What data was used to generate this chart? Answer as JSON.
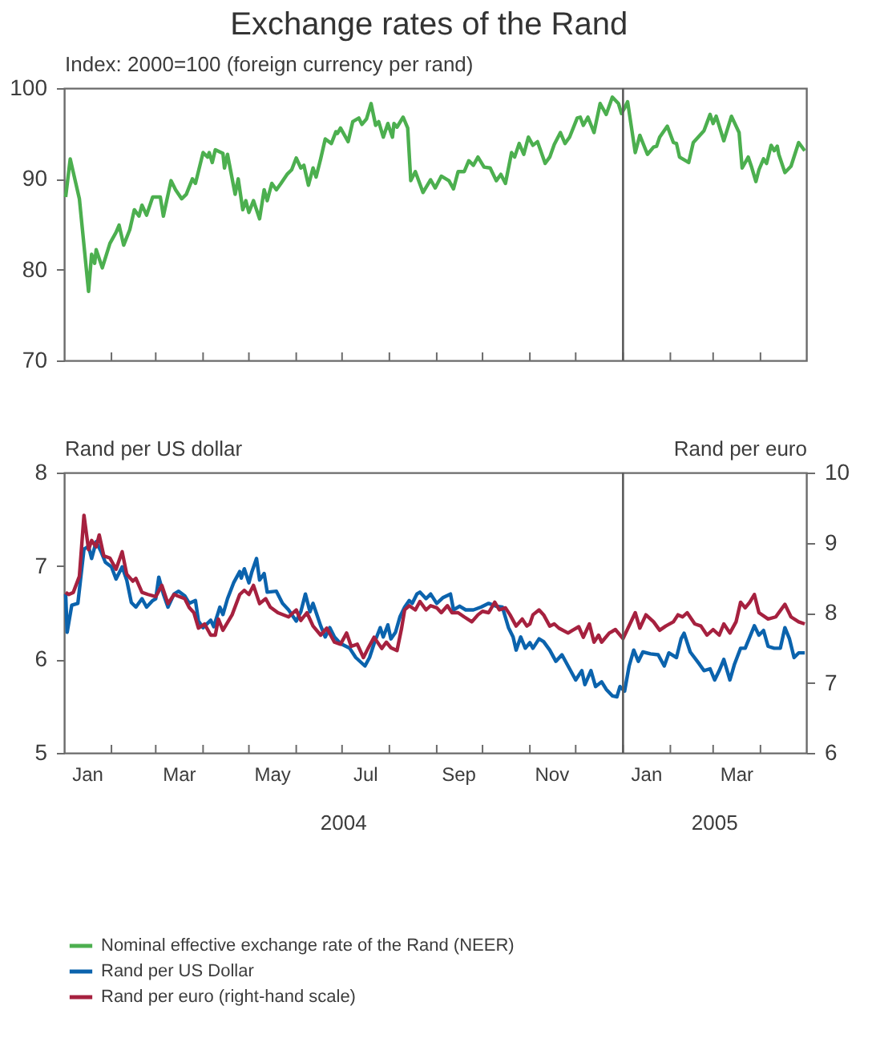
{
  "chart_data": [
    {
      "type": "line",
      "title": "Exchange rates of the Rand",
      "ylabel": "Index: 2000=100 (foreign currency per rand)",
      "xlim": [
        "2004-01-01",
        "2005-05-01"
      ],
      "ylim": [
        70,
        100
      ],
      "yticks": [
        70,
        80,
        90,
        100
      ],
      "xticks": [
        {
          "value": "2004-02-01",
          "label": null
        },
        {
          "value": "2004-03-01",
          "label": null
        },
        {
          "value": "2004-04-01",
          "label": null
        },
        {
          "value": "2004-05-01",
          "label": null
        },
        {
          "value": "2004-06-01",
          "label": null
        },
        {
          "value": "2004-07-01",
          "label": null
        },
        {
          "value": "2004-08-01",
          "label": null
        },
        {
          "value": "2004-09-01",
          "label": null
        },
        {
          "value": "2004-10-01",
          "label": null
        },
        {
          "value": "2004-11-01",
          "label": null
        },
        {
          "value": "2004-12-01",
          "label": null
        },
        {
          "value": "2005-01-01",
          "label": null
        },
        {
          "value": "2005-02-01",
          "label": null
        },
        {
          "value": "2005-03-01",
          "label": null
        },
        {
          "value": "2005-04-01",
          "label": null
        }
      ],
      "tick_labels": "y",
      "grid": false,
      "legend": "bottom",
      "line_style": "solid",
      "ref_lines": [
        {
          "axis": "x",
          "value": "2005-01-01",
          "color": "#5a5a5a"
        }
      ],
      "series": [
        {
          "name": "Nominal effective exchange rate of the Rand (NEER)",
          "color": "#4caf4f",
          "x": [
            "2004-01-02",
            "2004-01-05",
            "2004-01-11",
            "2004-01-17",
            "2004-01-19",
            "2004-01-21",
            "2004-01-22",
            "2004-01-26",
            "2004-01-31",
            "2004-02-04",
            "2004-02-06",
            "2004-02-09",
            "2004-02-13",
            "2004-02-16",
            "2004-02-19",
            "2004-02-21",
            "2004-02-24",
            "2004-02-28",
            "2004-03-04",
            "2004-03-06",
            "2004-03-11",
            "2004-03-14",
            "2004-03-18",
            "2004-03-21",
            "2004-03-25",
            "2004-03-27",
            "2004-04-01",
            "2004-04-04",
            "2004-04-05",
            "2004-04-07",
            "2004-04-09",
            "2004-04-14",
            "2004-04-15",
            "2004-04-17",
            "2004-04-22",
            "2004-04-24",
            "2004-04-27",
            "2004-04-29",
            "2004-05-01",
            "2004-05-04",
            "2004-05-08",
            "2004-05-11",
            "2004-05-13",
            "2004-05-16",
            "2004-05-19",
            "2004-05-22",
            "2004-05-26",
            "2004-05-29",
            "2004-06-01",
            "2004-06-04",
            "2004-06-06",
            "2004-06-09",
            "2004-06-12",
            "2004-06-14",
            "2004-06-17",
            "2004-06-20",
            "2004-06-24",
            "2004-06-27",
            "2004-06-28",
            "2004-06-30",
            "2004-07-05",
            "2004-07-08",
            "2004-07-12",
            "2004-07-14",
            "2004-07-17",
            "2004-07-20",
            "2004-07-23",
            "2004-07-25",
            "2004-07-28",
            "2004-07-31",
            "2004-08-03",
            "2004-08-04",
            "2004-08-06",
            "2004-08-10",
            "2004-08-13",
            "2004-08-15",
            "2004-08-18",
            "2004-08-23",
            "2004-08-28",
            "2004-08-31",
            "2004-09-04",
            "2004-09-09",
            "2004-09-12",
            "2004-09-15",
            "2004-09-19",
            "2004-09-22",
            "2004-09-25",
            "2004-09-28",
            "2004-10-02",
            "2004-10-06",
            "2004-10-10",
            "2004-10-13",
            "2004-10-16",
            "2004-10-20",
            "2004-10-22",
            "2004-10-25",
            "2004-10-28",
            "2004-10-31",
            "2004-11-03",
            "2004-11-06",
            "2004-11-11",
            "2004-11-14",
            "2004-11-17",
            "2004-11-21",
            "2004-11-24",
            "2004-11-27",
            "2004-12-02",
            "2004-12-04",
            "2004-12-06",
            "2004-12-09",
            "2004-12-13",
            "2004-12-17",
            "2004-12-21",
            "2004-12-25",
            "2004-12-29",
            "2004-12-31",
            "2005-01-02",
            "2005-01-04",
            "2005-01-09",
            "2005-01-12",
            "2005-01-17",
            "2005-01-21",
            "2005-01-23",
            "2005-01-25",
            "2005-01-30",
            "2005-02-03",
            "2005-02-05",
            "2005-02-07",
            "2005-02-13",
            "2005-02-16",
            "2005-02-23",
            "2005-02-27",
            "2005-03-01",
            "2005-03-03",
            "2005-03-08",
            "2005-03-13",
            "2005-03-18",
            "2005-03-20",
            "2005-03-24",
            "2005-03-26",
            "2005-03-29",
            "2005-03-31",
            "2005-04-03",
            "2005-04-05",
            "2005-04-08",
            "2005-04-10",
            "2005-04-12",
            "2005-04-13",
            "2005-04-17",
            "2005-04-21",
            "2005-04-26",
            "2005-04-30"
          ],
          "values": [
            88.0,
            92.2,
            87.8,
            77.6,
            81.7,
            80.7,
            82.2,
            80.2,
            82.9,
            84.1,
            84.9,
            82.7,
            84.4,
            86.6,
            85.9,
            87.1,
            86.0,
            88.0,
            88.0,
            85.9,
            89.8,
            88.8,
            87.8,
            88.3,
            90.0,
            89.5,
            92.9,
            92.4,
            92.9,
            91.8,
            93.2,
            92.8,
            91.2,
            92.7,
            88.3,
            90.0,
            86.6,
            87.6,
            86.3,
            87.6,
            85.6,
            88.8,
            87.6,
            89.5,
            88.8,
            89.5,
            90.5,
            91.0,
            92.3,
            91.2,
            91.5,
            89.3,
            91.2,
            90.2,
            92.2,
            94.4,
            93.9,
            95.2,
            95.0,
            95.6,
            94.1,
            96.3,
            96.7,
            96.0,
            96.6,
            98.3,
            95.9,
            96.3,
            94.6,
            96.1,
            94.6,
            96.1,
            95.7,
            96.8,
            95.6,
            89.8,
            90.8,
            88.5,
            89.9,
            89.0,
            90.3,
            89.8,
            88.9,
            90.8,
            90.8,
            92.0,
            91.5,
            92.4,
            91.3,
            91.2,
            89.8,
            90.5,
            89.5,
            92.9,
            92.4,
            93.9,
            92.7,
            94.6,
            93.7,
            94.1,
            91.7,
            92.4,
            93.8,
            95.1,
            93.9,
            94.6,
            96.7,
            96.8,
            95.9,
            96.8,
            95.1,
            98.3,
            97.1,
            99.0,
            98.3,
            97.2,
            97.8,
            98.5,
            92.9,
            94.8,
            92.7,
            93.5,
            93.6,
            94.6,
            95.8,
            94.0,
            93.9,
            92.4,
            91.8,
            94.0,
            95.3,
            97.1,
            96.1,
            96.9,
            94.2,
            96.9,
            95.1,
            91.2,
            92.4,
            91.4,
            89.7,
            91.0,
            92.2,
            91.7,
            93.7,
            93.1,
            93.6,
            92.7,
            90.7,
            91.4,
            94.0,
            93.1
          ]
        }
      ]
    },
    {
      "type": "line",
      "ylabel": "Rand per US dollar",
      "y2label": "Rand per euro",
      "xlim": [
        "2004-01-01",
        "2005-05-01"
      ],
      "ylim": [
        5,
        8
      ],
      "yticks": [
        5,
        6,
        7,
        8
      ],
      "y2lim": [
        6,
        10
      ],
      "y2ticks": [
        6,
        7,
        8,
        9,
        10
      ],
      "xticks": [
        {
          "value": "2004-01-16",
          "label": "Jan"
        },
        {
          "value": "2004-02-01",
          "label": null
        },
        {
          "value": "2004-03-01",
          "label": null
        },
        {
          "value": "2004-03-16",
          "label": "Mar"
        },
        {
          "value": "2004-04-01",
          "label": null
        },
        {
          "value": "2004-05-01",
          "label": null
        },
        {
          "value": "2004-05-16",
          "label": "May"
        },
        {
          "value": "2004-06-01",
          "label": null
        },
        {
          "value": "2004-07-01",
          "label": null
        },
        {
          "value": "2004-07-16",
          "label": "Jul"
        },
        {
          "value": "2004-08-01",
          "label": null
        },
        {
          "value": "2004-09-01",
          "label": null
        },
        {
          "value": "2004-09-15",
          "label": "Sep"
        },
        {
          "value": "2004-10-01",
          "label": null
        },
        {
          "value": "2004-11-01",
          "label": null
        },
        {
          "value": "2004-11-15",
          "label": "Nov"
        },
        {
          "value": "2004-12-01",
          "label": null
        },
        {
          "value": "2005-01-01",
          "label": null
        },
        {
          "value": "2005-01-16",
          "label": "Jan"
        },
        {
          "value": "2005-02-01",
          "label": null
        },
        {
          "value": "2005-03-01",
          "label": null
        },
        {
          "value": "2005-03-16",
          "label": "Mar"
        },
        {
          "value": "2005-04-01",
          "label": null
        }
      ],
      "grid": false,
      "legend": "bottom",
      "line_style": "solid",
      "ref_lines": [
        {
          "axis": "x",
          "value": "2005-01-01",
          "color": "#5a5a5a"
        }
      ],
      "annotations": [
        "2004",
        "2005"
      ],
      "series": [
        {
          "name": "Rand per US Dollar",
          "color": "#0b63ad",
          "axis": "y",
          "x": [
            "2004-01-02",
            "2004-01-03",
            "2004-01-06",
            "2004-01-10",
            "2004-01-14",
            "2004-01-17",
            "2004-01-19",
            "2004-01-22",
            "2004-01-25",
            "2004-01-28",
            "2004-02-01",
            "2004-02-04",
            "2004-02-08",
            "2004-02-11",
            "2004-02-14",
            "2004-02-17",
            "2004-02-21",
            "2004-02-24",
            "2004-02-28",
            "2004-03-01",
            "2004-03-03",
            "2004-03-06",
            "2004-03-09",
            "2004-03-13",
            "2004-03-16",
            "2004-03-20",
            "2004-03-23",
            "2004-03-27",
            "2004-03-29",
            "2004-04-01",
            "2004-04-06",
            "2004-04-08",
            "2004-04-12",
            "2004-04-14",
            "2004-04-17",
            "2004-04-21",
            "2004-04-25",
            "2004-04-26",
            "2004-04-28",
            "2004-05-01",
            "2004-05-03",
            "2004-05-06",
            "2004-05-08",
            "2004-05-11",
            "2004-05-13",
            "2004-05-19",
            "2004-05-23",
            "2004-05-27",
            "2004-06-01",
            "2004-06-04",
            "2004-06-07",
            "2004-06-10",
            "2004-06-12",
            "2004-06-17",
            "2004-06-20",
            "2004-06-23",
            "2004-06-26",
            "2004-06-30",
            "2004-07-06",
            "2004-07-10",
            "2004-07-16",
            "2004-07-19",
            "2004-07-22",
            "2004-07-26",
            "2004-07-28",
            "2004-07-31",
            "2004-08-02",
            "2004-08-05",
            "2004-08-08",
            "2004-08-11",
            "2004-08-14",
            "2004-08-16",
            "2004-08-19",
            "2004-08-21",
            "2004-08-25",
            "2004-08-28",
            "2004-09-01",
            "2004-09-05",
            "2004-09-10",
            "2004-09-12",
            "2004-09-16",
            "2004-09-20",
            "2004-09-25",
            "2004-09-30",
            "2004-10-05",
            "2004-10-10",
            "2004-10-14",
            "2004-10-18",
            "2004-10-21",
            "2004-10-23",
            "2004-10-26",
            "2004-10-29",
            "2004-11-01",
            "2004-11-03",
            "2004-11-07",
            "2004-11-10",
            "2004-11-14",
            "2004-11-18",
            "2004-11-22",
            "2004-11-26",
            "2004-12-01",
            "2004-12-05",
            "2004-12-07",
            "2004-12-11",
            "2004-12-14",
            "2004-12-18",
            "2004-12-21",
            "2004-12-25",
            "2004-12-28",
            "2004-12-30",
            "2005-01-02",
            "2005-01-05",
            "2005-01-08",
            "2005-01-11",
            "2005-01-14",
            "2005-01-19",
            "2005-01-24",
            "2005-01-28",
            "2005-01-31",
            "2005-02-05",
            "2005-02-08",
            "2005-02-10",
            "2005-02-14",
            "2005-02-20",
            "2005-02-23",
            "2005-02-27",
            "2005-03-02",
            "2005-03-05",
            "2005-03-08",
            "2005-03-12",
            "2005-03-15",
            "2005-03-19",
            "2005-03-22",
            "2005-03-25",
            "2005-03-28",
            "2005-03-31",
            "2005-04-03",
            "2005-04-06",
            "2005-04-10",
            "2005-04-14",
            "2005-04-17",
            "2005-04-20",
            "2005-04-23",
            "2005-04-26",
            "2005-04-30"
          ],
          "values": [
            6.7,
            6.29,
            6.58,
            6.6,
            7.18,
            7.21,
            7.08,
            7.26,
            7.16,
            7.04,
            6.99,
            6.86,
            6.99,
            6.85,
            6.61,
            6.56,
            6.65,
            6.56,
            6.63,
            6.65,
            6.88,
            6.7,
            6.56,
            6.7,
            6.73,
            6.68,
            6.6,
            6.63,
            6.41,
            6.34,
            6.42,
            6.35,
            6.56,
            6.48,
            6.65,
            6.82,
            6.94,
            6.87,
            6.97,
            6.82,
            6.94,
            7.08,
            6.85,
            6.92,
            6.72,
            6.73,
            6.6,
            6.53,
            6.41,
            6.51,
            6.7,
            6.51,
            6.6,
            6.36,
            6.24,
            6.34,
            6.24,
            6.17,
            6.12,
            6.02,
            5.93,
            6.02,
            6.17,
            6.34,
            6.24,
            6.37,
            6.22,
            6.29,
            6.46,
            6.56,
            6.63,
            6.6,
            6.7,
            6.72,
            6.65,
            6.7,
            6.6,
            6.66,
            6.7,
            6.53,
            6.57,
            6.53,
            6.53,
            6.56,
            6.6,
            6.57,
            6.56,
            6.34,
            6.24,
            6.1,
            6.24,
            6.12,
            6.18,
            6.12,
            6.22,
            6.19,
            6.1,
            5.98,
            6.05,
            5.93,
            5.78,
            5.88,
            5.73,
            5.88,
            5.71,
            5.76,
            5.68,
            5.61,
            5.6,
            5.71,
            5.66,
            5.93,
            6.1,
            5.98,
            6.08,
            6.06,
            6.05,
            5.93,
            6.07,
            6.02,
            6.22,
            6.28,
            6.08,
            5.95,
            5.88,
            5.9,
            5.78,
            5.88,
            6.0,
            5.78,
            5.95,
            6.12,
            6.12,
            6.24,
            6.36,
            6.26,
            6.31,
            6.14,
            6.12,
            6.12,
            6.34,
            6.22,
            6.02,
            6.07,
            6.07
          ]
        },
        {
          "name": "Rand per euro (right-hand scale)",
          "color": "#a6213f",
          "axis": "y2",
          "x": [
            "2004-01-02",
            "2004-01-04",
            "2004-01-07",
            "2004-01-11",
            "2004-01-14",
            "2004-01-17",
            "2004-01-19",
            "2004-01-22",
            "2004-01-24",
            "2004-01-27",
            "2004-01-31",
            "2004-02-04",
            "2004-02-08",
            "2004-02-11",
            "2004-02-15",
            "2004-02-17",
            "2004-02-21",
            "2004-02-25",
            "2004-03-01",
            "2004-03-05",
            "2004-03-09",
            "2004-03-13",
            "2004-03-20",
            "2004-03-23",
            "2004-03-26",
            "2004-03-29",
            "2004-04-02",
            "2004-04-06",
            "2004-04-09",
            "2004-04-11",
            "2004-04-14",
            "2004-04-20",
            "2004-04-25",
            "2004-04-28",
            "2004-05-01",
            "2004-05-04",
            "2004-05-08",
            "2004-05-12",
            "2004-05-15",
            "2004-05-20",
            "2004-05-27",
            "2004-06-01",
            "2004-06-04",
            "2004-06-08",
            "2004-06-12",
            "2004-06-17",
            "2004-06-21",
            "2004-06-26",
            "2004-06-30",
            "2004-07-04",
            "2004-07-07",
            "2004-07-11",
            "2004-07-15",
            "2004-07-18",
            "2004-07-22",
            "2004-07-27",
            "2004-07-30",
            "2004-08-02",
            "2004-08-06",
            "2004-08-09",
            "2004-08-11",
            "2004-08-14",
            "2004-08-18",
            "2004-08-21",
            "2004-08-25",
            "2004-08-28",
            "2004-09-01",
            "2004-09-04",
            "2004-09-08",
            "2004-09-11",
            "2004-09-15",
            "2004-09-19",
            "2004-09-24",
            "2004-09-28",
            "2004-10-01",
            "2004-10-05",
            "2004-10-09",
            "2004-10-12",
            "2004-10-16",
            "2004-10-19",
            "2004-10-23",
            "2004-10-27",
            "2004-10-30",
            "2004-11-01",
            "2004-11-03",
            "2004-11-07",
            "2004-11-10",
            "2004-11-14",
            "2004-11-17",
            "2004-11-20",
            "2004-11-26",
            "2004-11-29",
            "2004-12-03",
            "2004-12-06",
            "2004-12-10",
            "2004-12-13",
            "2004-12-16",
            "2004-12-18",
            "2004-12-23",
            "2004-12-27",
            "2005-01-01",
            "2005-01-09",
            "2005-01-12",
            "2005-01-16",
            "2005-01-21",
            "2005-01-25",
            "2005-01-29",
            "2005-02-03",
            "2005-02-06",
            "2005-02-09",
            "2005-02-12",
            "2005-02-17",
            "2005-02-21",
            "2005-02-25",
            "2005-03-01",
            "2005-03-05",
            "2005-03-08",
            "2005-03-12",
            "2005-03-16",
            "2005-03-19",
            "2005-03-22",
            "2005-03-25",
            "2005-03-28",
            "2005-03-31",
            "2005-04-06",
            "2005-04-11",
            "2005-04-17",
            "2005-04-21",
            "2005-04-26",
            "2005-04-30"
          ],
          "values": [
            8.29,
            8.26,
            8.29,
            8.52,
            9.39,
            8.9,
            9.03,
            8.94,
            9.11,
            8.81,
            8.78,
            8.62,
            8.87,
            8.55,
            8.45,
            8.49,
            8.29,
            8.26,
            8.23,
            8.39,
            8.13,
            8.26,
            8.2,
            8.07,
            8.0,
            7.78,
            7.84,
            7.68,
            7.68,
            7.91,
            7.75,
            7.97,
            8.26,
            8.32,
            8.26,
            8.39,
            8.13,
            8.2,
            8.08,
            8.0,
            7.94,
            8.04,
            7.89,
            8.0,
            7.81,
            7.68,
            7.78,
            7.58,
            7.55,
            7.71,
            7.52,
            7.55,
            7.36,
            7.49,
            7.65,
            7.49,
            7.58,
            7.5,
            7.46,
            7.78,
            8.04,
            8.1,
            8.04,
            8.16,
            8.04,
            8.1,
            8.07,
            8.0,
            8.1,
            8.0,
            8.0,
            7.94,
            7.87,
            7.97,
            8.02,
            8.0,
            8.15,
            8.04,
            8.07,
            7.97,
            7.81,
            7.91,
            7.81,
            7.84,
            7.97,
            8.04,
            7.97,
            7.81,
            7.84,
            7.78,
            7.71,
            7.75,
            7.8,
            7.65,
            7.84,
            7.58,
            7.68,
            7.58,
            7.71,
            7.76,
            7.63,
            8.0,
            7.78,
            7.97,
            7.87,
            7.75,
            7.81,
            7.87,
            7.97,
            7.94,
            8.0,
            7.84,
            7.81,
            7.68,
            7.76,
            7.68,
            7.84,
            7.71,
            7.87,
            8.15,
            8.07,
            8.15,
            8.26,
            8.0,
            7.91,
            7.94,
            8.12,
            7.94,
            7.87,
            7.84
          ]
        }
      ]
    }
  ]
}
